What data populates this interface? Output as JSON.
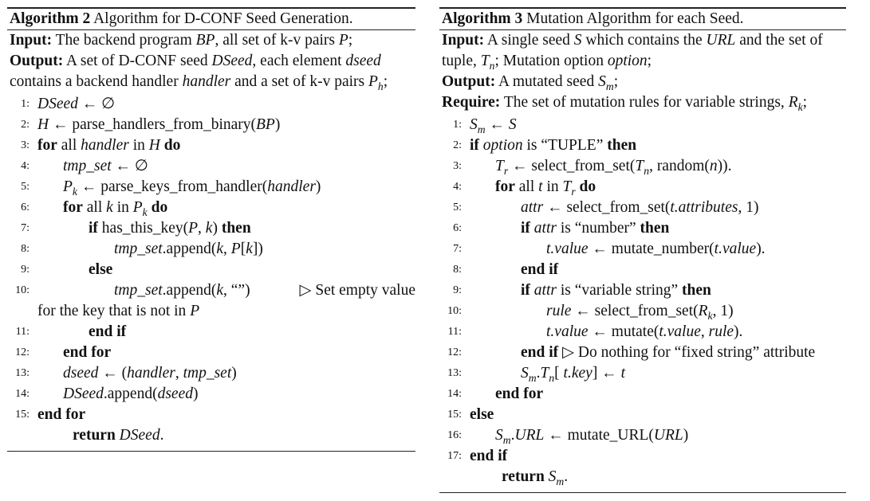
{
  "algo2": {
    "label": "Algorithm 2",
    "title": "Algorithm for D-CONF Seed Generation.",
    "input_label": "Input:",
    "input_text": "The backend program BP, all set of k-v pairs P;",
    "output_label": "Output:",
    "output_text": "A set of D-CONF seed DSeed, each element dseed contains a backend handler handler and a set of k-v pairs Ph;",
    "lines": [
      {
        "n": "1:",
        "text": "DSeed ← ∅"
      },
      {
        "n": "2:",
        "text": "H ← parse_handlers_from_binary(BP)"
      },
      {
        "n": "3:",
        "text": "for all handler in H do"
      },
      {
        "n": "4:",
        "text": "tmp_set ← ∅"
      },
      {
        "n": "5:",
        "text": "Pk ← parse_keys_from_handler(handler)"
      },
      {
        "n": "6:",
        "text": "for all k in Pk do"
      },
      {
        "n": "7:",
        "text": "if has_this_key(P, k) then"
      },
      {
        "n": "8:",
        "text": "tmp_set.append(k, P[k])"
      },
      {
        "n": "9:",
        "text": "else"
      },
      {
        "n": "10:",
        "text": "tmp_set.append(k, “”)"
      },
      {
        "n": "11:",
        "text": "end if"
      },
      {
        "n": "12:",
        "text": "end for"
      },
      {
        "n": "13:",
        "text": "dseed ← (handler, tmp_set)"
      },
      {
        "n": "14:",
        "text": "DSeed.append(dseed)"
      },
      {
        "n": "15:",
        "text": "end for"
      }
    ],
    "comment_10": "▷ Set empty value for the key that is not in P",
    "return_text": "return DSeed."
  },
  "algo3": {
    "label": "Algorithm 3",
    "title": "Mutation Algorithm for each Seed.",
    "input_label": "Input:",
    "input_text": "A single seed S which contains the URL and the set of tuple, Tn; Mutation option option;",
    "output_label": "Output:",
    "output_text": "A mutated seed Sm;",
    "require_label": "Require:",
    "require_text": "The set of mutation rules for variable strings, Rk;",
    "lines": [
      {
        "n": "1:",
        "text": "Sm ← S"
      },
      {
        "n": "2:",
        "text": "if option is “TUPLE” then"
      },
      {
        "n": "3:",
        "text": "Tr ← select_from_set(Tn, random(n))."
      },
      {
        "n": "4:",
        "text": "for all t in Tr do"
      },
      {
        "n": "5:",
        "text": "attr ← select_from_set(t.attributes, 1)"
      },
      {
        "n": "6:",
        "text": "if attr is “number” then"
      },
      {
        "n": "7:",
        "text": "t.value ← mutate_number(t.value)."
      },
      {
        "n": "8:",
        "text": "end if"
      },
      {
        "n": "9:",
        "text": "if attr is “variable string” then"
      },
      {
        "n": "10:",
        "text": "rule ← select_from_set(Rk, 1)"
      },
      {
        "n": "11:",
        "text": "t.value ← mutate(t.value, rule)."
      },
      {
        "n": "12:",
        "text": "end if ▷ Do nothing for “fixed string” attribute"
      },
      {
        "n": "13:",
        "text": "Sm.Tn[ t.key] ← t"
      },
      {
        "n": "14:",
        "text": "end for"
      },
      {
        "n": "15:",
        "text": "else"
      },
      {
        "n": "16:",
        "text": "Sm.URL ← mutate_URL(URL)"
      },
      {
        "n": "17:",
        "text": "end if"
      }
    ],
    "return_text": "return Sm."
  }
}
